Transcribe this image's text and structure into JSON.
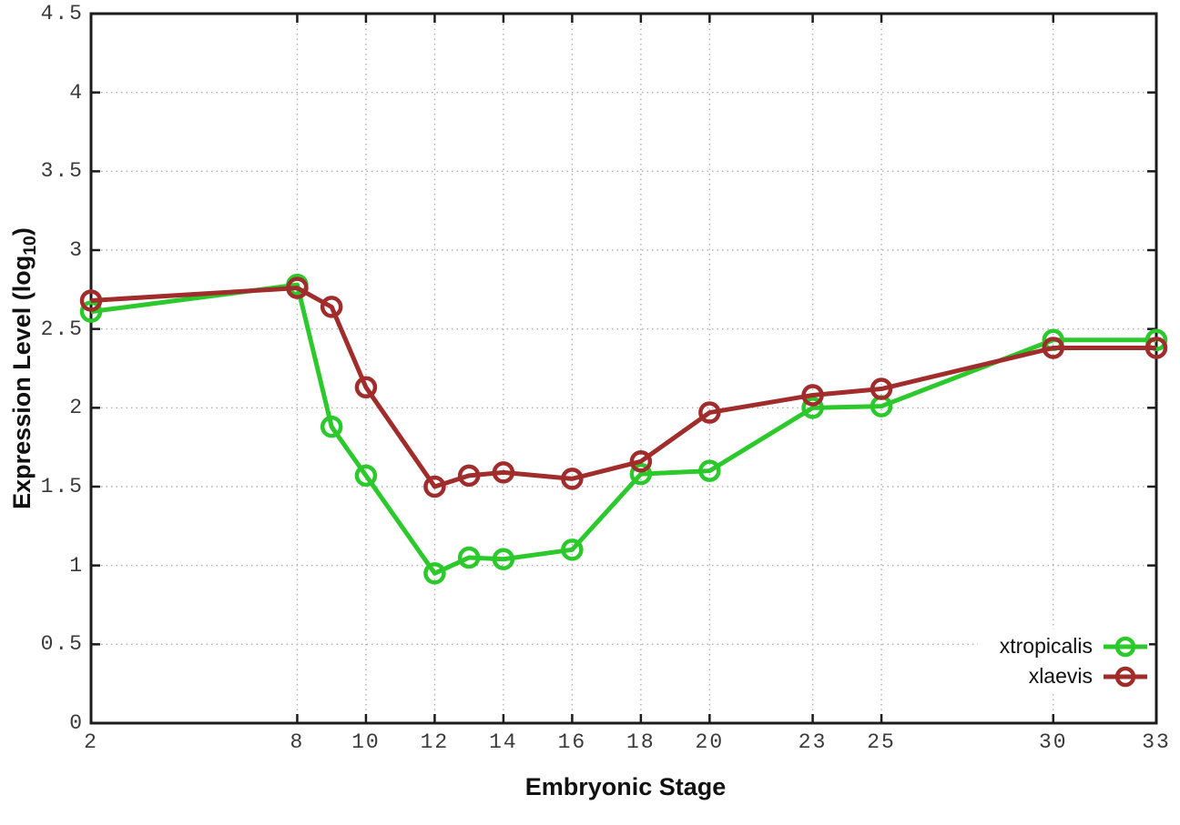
{
  "chart_data": {
    "type": "line",
    "title": "",
    "xlabel": "Embryonic Stage",
    "ylabel_prefix": "Expression Level (log",
    "ylabel_sub": "10",
    "ylabel_suffix": ")",
    "xlim": [
      2,
      33
    ],
    "ylim": [
      0,
      4.5
    ],
    "x_ticks": [
      2,
      8,
      10,
      12,
      14,
      16,
      18,
      20,
      23,
      25,
      30,
      33
    ],
    "y_ticks": [
      0,
      0.5,
      1,
      1.5,
      2,
      2.5,
      3,
      3.5,
      4,
      4.5
    ],
    "grid": true,
    "legend_position": "bottom-right",
    "x": [
      2,
      8,
      9,
      10,
      12,
      13,
      14,
      16,
      18,
      20,
      23,
      25,
      30,
      33
    ],
    "series": [
      {
        "name": "xtropicalis",
        "color": "#2bc92b",
        "marker": "open-circle",
        "values": [
          2.61,
          2.78,
          1.88,
          1.57,
          0.95,
          1.05,
          1.04,
          1.1,
          1.58,
          1.6,
          2.0,
          2.01,
          2.43,
          2.43
        ]
      },
      {
        "name": "xlaevis",
        "color": "#a02c2c",
        "marker": "open-circle",
        "values": [
          2.68,
          2.76,
          2.64,
          2.13,
          1.5,
          1.57,
          1.59,
          1.55,
          1.66,
          1.97,
          2.08,
          2.12,
          2.38,
          2.38
        ]
      }
    ],
    "style": {
      "border_color": "#1c1c1c",
      "grid_color": "#b0b0b0",
      "tick_label_color": "#3a3a3a"
    }
  }
}
